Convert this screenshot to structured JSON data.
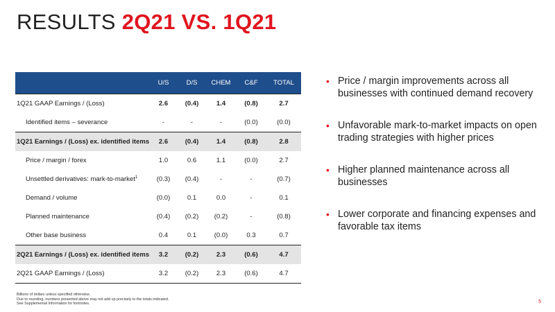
{
  "title": {
    "plain": "RESULTS ",
    "highlight": "2Q21 VS. 1Q21"
  },
  "table": {
    "columns": [
      "",
      "U/S",
      "D/S",
      "CHEM",
      "C&F",
      "TOTAL"
    ],
    "rows": [
      {
        "label": "1Q21 GAAP Earnings / (Loss)",
        "values": [
          "2.6",
          "(0.4)",
          "1.4",
          "(0.8)",
          "2.7"
        ]
      },
      {
        "label": "Identified items – severance",
        "values": [
          "-",
          "-",
          "-",
          "(0.0)",
          "(0.0)"
        ]
      },
      {
        "label": "1Q21 Earnings / (Loss) ex. identified items",
        "values": [
          "2.6",
          "(0.4)",
          "1.4",
          "(0.8)",
          "2.8"
        ]
      },
      {
        "label": "Price / margin / forex",
        "values": [
          "1.0",
          "0.6",
          "1.1",
          "(0.0)",
          "2.7"
        ]
      },
      {
        "label": "Unsettled derivatives: mark-to-market",
        "label_sup": "1",
        "values": [
          "(0.3)",
          "(0.4)",
          "-",
          "-",
          "(0.7)"
        ]
      },
      {
        "label": "Demand / volume",
        "values": [
          "(0.0)",
          "0.1",
          "0.0",
          "-",
          "0.1"
        ]
      },
      {
        "label": "Planned maintenance",
        "values": [
          "(0.4)",
          "(0.2)",
          "(0.2)",
          "-",
          "(0.8)"
        ]
      },
      {
        "label": "Other base business",
        "values": [
          "0.4",
          "0.1",
          "(0.0)",
          "0.3",
          "0.7"
        ]
      },
      {
        "label": "2Q21 Earnings / (Loss) ex. identified items",
        "values": [
          "3.2",
          "(0.2)",
          "2.3",
          "(0.6)",
          "4.7"
        ]
      },
      {
        "label": "2Q21 GAAP Earnings / (Loss)",
        "values": [
          "3.2",
          "(0.2)",
          "2.3",
          "(0.6)",
          "4.7"
        ]
      }
    ]
  },
  "bullets": [
    "Price / margin improvements across all businesses with continued demand recovery",
    "Unfavorable mark-to-market impacts on open trading strategies with higher prices",
    "Higher planned maintenance across all businesses",
    "Lower corporate and financing expenses and favorable tax items"
  ],
  "bullet_glyph": "•",
  "footnotes": [
    "Billions of dollars unless specified otherwise.",
    "Due to rounding, numbers presented above may not add up precisely to the totals indicated.",
    "See Supplemental Information for footnotes."
  ],
  "page_number": "5",
  "colors": {
    "accent": "#e0151f",
    "header_bg": "#1f4e8c",
    "shade": "#e4e4e4"
  }
}
